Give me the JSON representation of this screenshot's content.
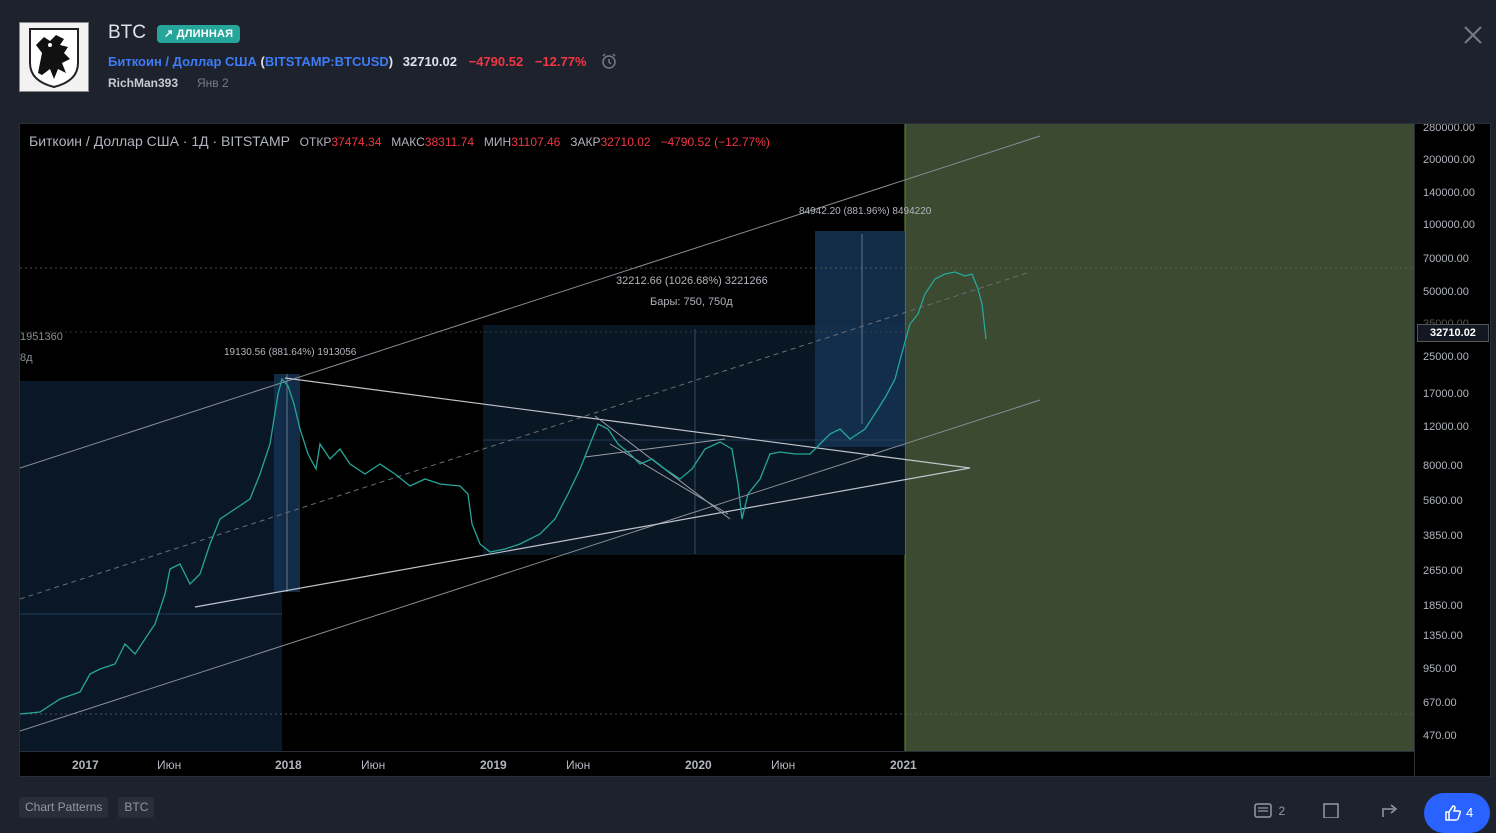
{
  "header": {
    "title": "BTC",
    "badge": "↗ ДЛИННАЯ",
    "instrument_name": "Биткоин / Доллар США",
    "symbol": "BITSTAMP:BTCUSD",
    "price": "32710.02",
    "change": "−4790.52",
    "change_pct": "−12.77%",
    "author": "RichMan393",
    "date": "Янв 2"
  },
  "chart": {
    "legend": {
      "title": "Биткоин / Доллар США · 1Д · BITSTAMP",
      "open_label": "ОТКР",
      "open": "37474.34",
      "high_label": "МАКС",
      "high": "38311.74",
      "low_label": "МИН",
      "low": "31107.46",
      "close_label": "ЗАКР",
      "close": "32710.02",
      "change": "−4790.52 (−12.77%)"
    },
    "price_axis": [
      "280000.00",
      "200000.00",
      "140000.00",
      "100000.00",
      "70000.00",
      "50000.00",
      "35000.00",
      "25000.00",
      "17000.00",
      "12000.00",
      "8000.00",
      "5600.00",
      "3850.00",
      "2650.00",
      "1850.00",
      "1350.00",
      "950.00",
      "670.00",
      "470.00"
    ],
    "last_price_label": "32710.02",
    "time_axis": [
      "2017",
      "Июн",
      "2018",
      "Июн",
      "2019",
      "Июн",
      "2020",
      "Июн",
      "2021"
    ],
    "annotations": {
      "range1": "19130.56 (881.64%) 1913056",
      "range1_left_a": "1951360",
      "range1_left_b": "8д",
      "range2_a": "32212.66 (1026.68%) 3221266",
      "range2_b": "Бары: 750, 750д",
      "range3": "84942.20 (881.96%) 8494220"
    }
  },
  "footer": {
    "tags": [
      "Chart Patterns",
      "BTC"
    ],
    "comments_count": "2",
    "likes_count": "4"
  },
  "colors": {
    "up": "#26a69a",
    "down": "#f23645",
    "accent": "#2962ff",
    "zone": "#3b4a31"
  }
}
